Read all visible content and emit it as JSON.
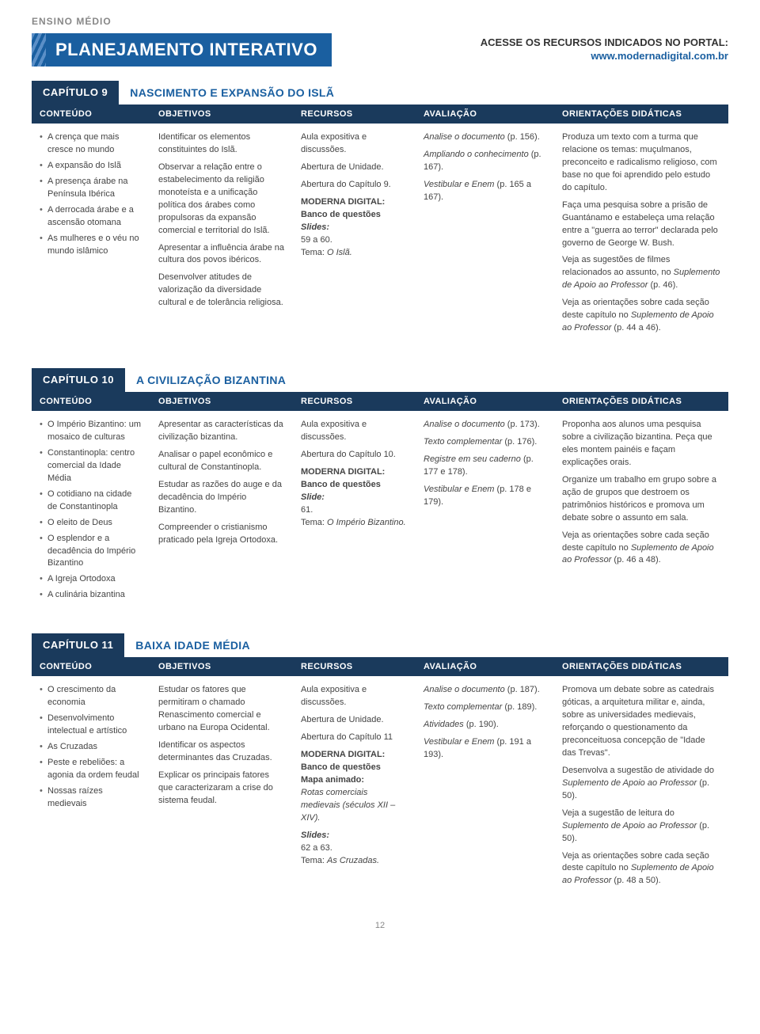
{
  "header": {
    "level": "ENSINO MÉDIO",
    "title": "PLANEJAMENTO INTERATIVO",
    "portal_line1": "ACESSE OS RECURSOS INDICADOS NO PORTAL:",
    "portal_url": "www.modernadigital.com.br"
  },
  "columnHeaders": {
    "c1": "CONTEÚDO",
    "c2": "OBJETIVOS",
    "c3": "RECURSOS",
    "c4": "AVALIAÇÃO",
    "c5": "ORIENTAÇÕES DIDÁTICAS"
  },
  "chapters": [
    {
      "badge": "CAPÍTULO 9",
      "title": "NASCIMENTO E EXPANSÃO DO ISLÃ",
      "conteudo": [
        "A crença que mais cresce no mundo",
        "A expansão do Islã",
        "A presença árabe na Península Ibérica",
        "A derrocada árabe e a ascensão otomana",
        "As mulheres e o véu no mundo islâmico"
      ],
      "objetivos": [
        "Identificar os elementos constituintes do Islã.",
        "Observar a relação entre o estabelecimento da religião monoteísta e a unificação política dos árabes como propulsoras da expansão comercial e territorial do Islã.",
        "Apresentar a influência árabe na cultura dos povos ibéricos.",
        "Desenvolver atitudes de valorização da diversidade cultural e de tolerância religiosa."
      ],
      "recursos": {
        "l1": "Aula expositiva e discussões.",
        "l2": "Abertura de Unidade.",
        "l3": "Abertura do Capítulo 9.",
        "l4": "MODERNA DIGITAL:",
        "l5": "Banco de questões",
        "l6": "Slides:",
        "l7": "59 a 60.",
        "l8a": "Tema: ",
        "l8b": "O Islã."
      },
      "avaliacao": {
        "a1a": "Analise o documento",
        "a1b": "(p. 156).",
        "a2a": "Ampliando o conhecimento",
        "a2b": "(p. 167).",
        "a3a": "Vestibular e Enem",
        "a3b": "(p. 165 a 167)."
      },
      "orientacoes": {
        "p1": "Produza um texto com a turma que relacione os temas: muçulmanos, preconceito e radicalismo religioso, com base no que foi aprendido pelo estudo do capítulo.",
        "p2": "Faça uma pesquisa sobre a prisão de Guantánamo e estabeleça uma relação entre a \"guerra ao terror\" declarada pelo governo de George W. Bush.",
        "p3a": "Veja as sugestões de filmes relacionados ao assunto, no ",
        "p3b": "Suplemento de Apoio ao Professor ",
        "p3c": "(p. 46).",
        "p4a": "Veja as orientações sobre cada seção deste capítulo no ",
        "p4b": "Suplemento de Apoio ao Professor ",
        "p4c": "(p. 44 a 46)."
      }
    },
    {
      "badge": "CAPÍTULO 10",
      "title": "A CIVILIZAÇÃO BIZANTINA",
      "conteudo": [
        "O Império Bizantino: um mosaico de culturas",
        "Constantinopla: centro comercial da Idade Média",
        "O cotidiano na cidade de Constantinopla",
        "O eleito de Deus",
        "O esplendor e a decadência do Império Bizantino",
        "A Igreja Ortodoxa",
        "A culinária bizantina"
      ],
      "objetivos": [
        "Apresentar as características da civilização bizantina.",
        "Analisar o papel econômico e cultural de Constantinopla.",
        "Estudar as razões do auge e da decadência do Império Bizantino.",
        "Compreender o cristianismo praticado pela Igreja Ortodoxa."
      ],
      "recursos": {
        "l1": "Aula expositiva e discussões.",
        "l3": "Abertura do Capítulo 10.",
        "l4": "MODERNA DIGITAL:",
        "l5": "Banco de questões",
        "l6": "Slide:",
        "l7": "61.",
        "l8a": "Tema: ",
        "l8b": "O Império Bizantino."
      },
      "avaliacao": {
        "a1a": "Analise o documento",
        "a1b": "(p. 173).",
        "a2a": "Texto complementar",
        "a2b": "(p. 176).",
        "a3a": "Registre em seu caderno",
        "a3b": "(p. 177 e 178).",
        "a4a": "Vestibular e Enem ",
        "a4b": "(p. 178 e 179)."
      },
      "orientacoes": {
        "p1": "Proponha aos alunos uma pesquisa sobre a civilização bizantina. Peça que eles montem painéis e façam explicações orais.",
        "p2": "Organize um trabalho em grupo sobre a ação de grupos que destroem os patrimônios históricos e promova um debate sobre o assunto em sala.",
        "p4a": "Veja as orientações sobre cada seção deste capítulo no ",
        "p4b": "Suplemento de Apoio ao Professor ",
        "p4c": "(p. 46 a 48)."
      }
    },
    {
      "badge": "CAPÍTULO 11",
      "title": "BAIXA IDADE MÉDIA",
      "conteudo": [
        "O crescimento da economia",
        "Desenvolvimento intelectual e artístico",
        "As Cruzadas",
        "Peste e rebeliões: a agonia da ordem feudal",
        "Nossas raízes medievais"
      ],
      "objetivos": [
        "Estudar os fatores que permitiram o chamado Renascimento comercial e urbano na Europa Ocidental.",
        "Identificar os aspectos determinantes das Cruzadas.",
        "Explicar os principais fatores que caracterizaram a crise do sistema feudal."
      ],
      "recursos": {
        "l1": "Aula expositiva e discussões.",
        "l2": "Abertura de Unidade.",
        "l3": "Abertura do Capítulo 11",
        "l4": "MODERNA DIGITAL:",
        "l5": "Banco de questões",
        "m1": "Mapa animado:",
        "m2": "Rotas comerciais medievais (séculos XII – XIV).",
        "l6": "Slides:",
        "l7": "62 a 63.",
        "l8a": "Tema: ",
        "l8b": "As Cruzadas."
      },
      "avaliacao": {
        "a1a": "Analise o documento",
        "a1b": "(p. 187).",
        "a2a": "Texto complementar",
        "a2b": "(p. 189).",
        "a3a": "Atividades ",
        "a3b": "(p. 190).",
        "a4a": "Vestibular e Enem ",
        "a4b": "(p. 191 a 193)."
      },
      "orientacoes": {
        "p1": "Promova um debate sobre as catedrais góticas, a arquitetura militar e, ainda, sobre as universidades medievais, reforçando o questionamento da preconceituosa concepção de \"Idade das Trevas\".",
        "p2a": "Desenvolva a sugestão de atividade do ",
        "p2b": "Suplemento de Apoio ao Professor ",
        "p2c": "(p. 50).",
        "p3a": "Veja a sugestão de leitura do ",
        "p3b": "Suplemento de Apoio ao Professor ",
        "p3c": "(p. 50).",
        "p4a": "Veja as orientações sobre cada seção deste capítulo no ",
        "p4b": "Suplemento de Apoio ao Professor ",
        "p4c": "(p. 48 a 50)."
      }
    }
  ],
  "pageNumber": "12"
}
